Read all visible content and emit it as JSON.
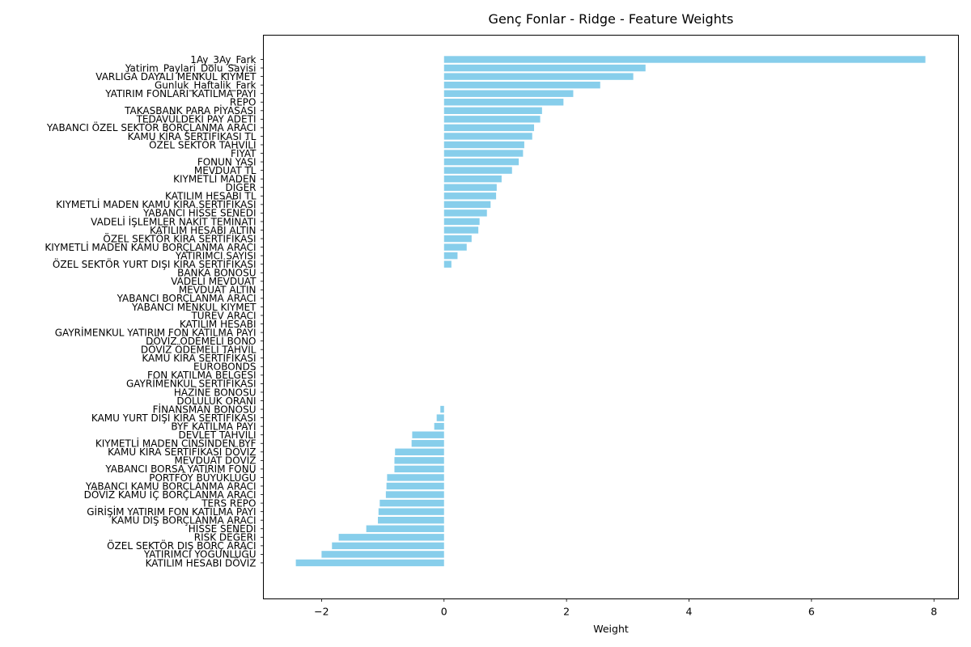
{
  "chart_data": {
    "type": "bar",
    "orientation": "horizontal",
    "title": "Genç Fonlar - Ridge - Feature Weights",
    "xlabel": "Weight",
    "ylabel": "",
    "xlim": [
      -2.95,
      8.4
    ],
    "xticks": [
      -2,
      0,
      2,
      4,
      6,
      8
    ],
    "xtick_labels": [
      "−2",
      "0",
      "2",
      "4",
      "6",
      "8"
    ],
    "grid": false,
    "bar_color": "#87ceeb",
    "categories": [
      "1Ay_3Ay_Fark",
      "Yatirim_Paylari_Dolu_Sayisi",
      "VARLIĞA DAYALI MENKUL KIYMET",
      "Gunluk_Haftalik_Fark",
      "YATIRIM FONLARI KATILMA PAYI",
      "REPO",
      "TAKASBANK PARA PİYASASI",
      "TEDAVÜLDEKİ PAY ADETİ",
      "YABANCI ÖZEL SEKTÖR BORÇLANMA ARACI",
      "KAMU KİRA SERTİFİKASI TL",
      "ÖZEL SEKTÖR TAHVİLİ",
      "FİYAT",
      "FONUN YAŞI",
      "MEVDUAT TL",
      "KIYMETLİ MADEN",
      "DİĞER",
      "KATILIM HESABI TL",
      "KIYMETLİ MADEN KAMU KİRA SERTİFİKASI",
      "YABANCI HİSSE SENEDİ",
      "VADELİ İŞLEMLER NAKİT TEMİNATI",
      "KATILIM HESABI ALTIN",
      "ÖZEL SEKTÖR KİRA SERTİFİKASI",
      "KIYMETLİ MADEN KAMU BORÇLANMA ARACI",
      "YATIRIMCI SAYISI",
      "ÖZEL SEKTÖR YURT DIŞI KİRA SERTİFİKASI",
      "BANKA BONOSU",
      "VADELİ MEVDUAT",
      "MEVDUAT ALTIN",
      "YABANCI BORÇLANMA ARACI",
      "YABANCI MENKUL KIYMET",
      "TÜREV ARACI",
      "KATILIM HESABI",
      "GAYRİMENKUL YATIRIM FON KATILMA PAYI",
      "DÖVİZ ÖDEMELİ BONO",
      "DÖVİZ ÖDEMELİ TAHVİL",
      "KAMU KİRA SERTİFİKASI",
      "EUROBONDS",
      "FON KATILMA BELGESİ",
      "GAYRİMENKUL SERTİFİKASI",
      "HAZİNE BONOSU",
      "DOLULUK ORANI",
      "FİNANSMAN BONOSU",
      "KAMU YURT DIŞI KİRA SERTİFİKASI",
      "BYF KATILMA PAYI",
      "DEVLET TAHVİLİ",
      "KIYMETLİ MADEN CİNSİNDEN BYF",
      "KAMU KİRA SERTİFİKASI DÖVİZ",
      "MEVDUAT DÖVİZ",
      "YABANCI BORSA YATIRIM FONU",
      "PORTFÖY BÜYÜKLÜĞÜ",
      "YABANCI KAMU BORÇLANMA ARACI",
      "DÖVİZ KAMU İÇ BORÇLANMA ARACI",
      "TERS REPO",
      "GİRİŞİM YATIRIM FON KATILMA PAYI",
      "KAMU DIŞ BORÇLANMA ARACI",
      "HİSSE SENEDİ",
      "RİSK DEĞERİ",
      "ÖZEL SEKTÖR DIŞ BORÇ ARACI",
      "YATIRIMCI YOĞUNLUĞU",
      "KATILIM HESABI DÖVİZ"
    ],
    "values": [
      7.86,
      3.29,
      3.09,
      2.55,
      2.11,
      1.95,
      1.6,
      1.57,
      1.47,
      1.44,
      1.31,
      1.29,
      1.22,
      1.11,
      0.94,
      0.86,
      0.85,
      0.76,
      0.7,
      0.58,
      0.56,
      0.45,
      0.37,
      0.22,
      0.12,
      0,
      0,
      0,
      0,
      0,
      0,
      0,
      0,
      0,
      0,
      0,
      0,
      0,
      0,
      0,
      0,
      -0.06,
      -0.12,
      -0.16,
      -0.52,
      -0.53,
      -0.8,
      -0.81,
      -0.81,
      -0.93,
      -0.94,
      -0.95,
      -1.05,
      -1.07,
      -1.08,
      -1.27,
      -1.72,
      -1.83,
      -2.0,
      -2.42
    ]
  }
}
